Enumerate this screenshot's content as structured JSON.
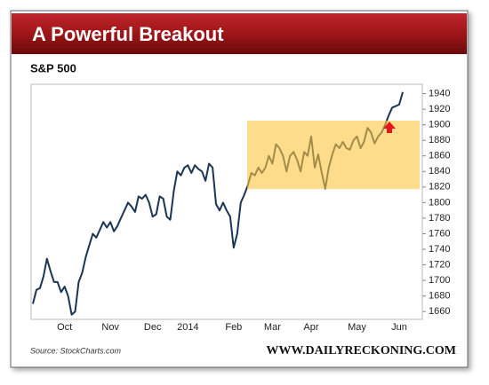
{
  "chart_data": {
    "type": "line",
    "title": "A Powerful Breakout",
    "subtitle": "S&P 500",
    "source": "Source: StockCharts.com",
    "watermark": "WWW.DAILYRECKONING.COM",
    "color": "#1c3553",
    "grid": false,
    "categories": [
      null,
      null,
      null,
      null,
      null,
      null,
      null,
      null,
      null,
      "Oct",
      null,
      null,
      null,
      null,
      null,
      null,
      null,
      null,
      null,
      null,
      null,
      null,
      "Nov",
      null,
      null,
      null,
      null,
      null,
      null,
      null,
      null,
      null,
      null,
      null,
      "Dec",
      null,
      null,
      null,
      null,
      null,
      null,
      null,
      null,
      null,
      "2014",
      null,
      null,
      null,
      null,
      null,
      null,
      null,
      null,
      null,
      null,
      null,
      null,
      "Feb",
      null,
      null,
      null,
      null,
      null,
      null,
      null,
      null,
      null,
      null,
      "Mar",
      null,
      null,
      null,
      null,
      null,
      null,
      null,
      null,
      null,
      null,
      "Apr",
      null,
      null,
      null,
      null,
      null,
      null,
      null,
      null,
      null,
      null,
      null,
      null,
      "May",
      null,
      null,
      null,
      null,
      null,
      null,
      null,
      null,
      null,
      null,
      null,
      "Jun",
      null
    ],
    "values": [
      1670,
      1688,
      1690,
      1705,
      1728,
      1712,
      1698,
      1698,
      1685,
      1692,
      1680,
      1656,
      1660,
      1698,
      1710,
      1730,
      1745,
      1760,
      1755,
      1765,
      1775,
      1768,
      1775,
      1763,
      1770,
      1780,
      1790,
      1800,
      1795,
      1788,
      1808,
      1805,
      1810,
      1800,
      1782,
      1785,
      1808,
      1805,
      1782,
      1778,
      1815,
      1840,
      1835,
      1845,
      1848,
      1838,
      1848,
      1843,
      1840,
      1828,
      1850,
      1845,
      1798,
      1790,
      1800,
      1790,
      1782,
      1742,
      1760,
      1800,
      1810,
      1822,
      1838,
      1835,
      1845,
      1838,
      1845,
      1860,
      1850,
      1875,
      1870,
      1860,
      1840,
      1860,
      1865,
      1855,
      1840,
      1865,
      1860,
      1885,
      1845,
      1862,
      1838,
      1818,
      1845,
      1862,
      1875,
      1870,
      1878,
      1870,
      1868,
      1880,
      1885,
      1870,
      1878,
      1896,
      1890,
      1876,
      1885,
      1890,
      1900,
      1912,
      1922,
      1924,
      1926,
      1942
    ],
    "ylim": [
      1650,
      1952
    ],
    "yticks": [
      1660,
      1680,
      1700,
      1720,
      1740,
      1760,
      1780,
      1800,
      1820,
      1840,
      1860,
      1880,
      1900,
      1920,
      1940
    ]
  }
}
